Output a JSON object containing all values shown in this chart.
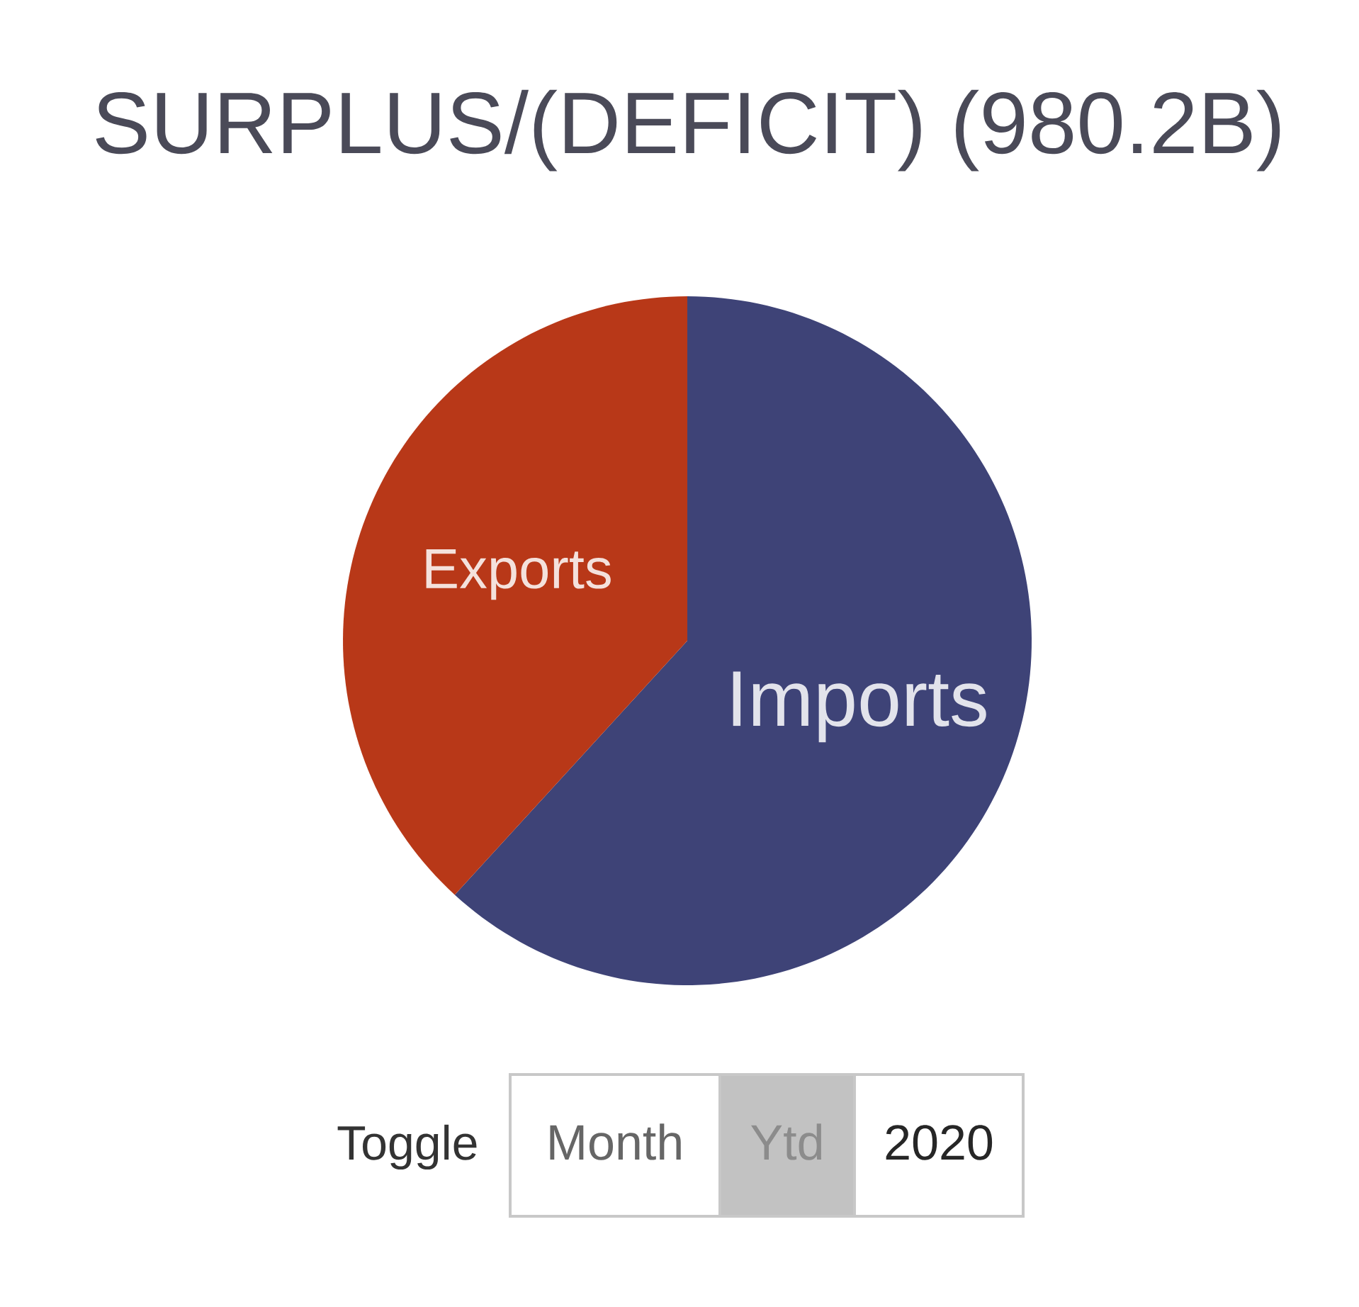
{
  "chart_data": {
    "type": "pie",
    "title": "SURPLUS/(DEFICIT) (980.2B)",
    "categories": [
      "Imports",
      "Exports"
    ],
    "values": [
      61.8,
      38.2
    ],
    "colors": [
      "#3e4377",
      "#b83818"
    ],
    "annotations": [
      "Toggle",
      "Month",
      "Ytd",
      "2020"
    ]
  }
}
